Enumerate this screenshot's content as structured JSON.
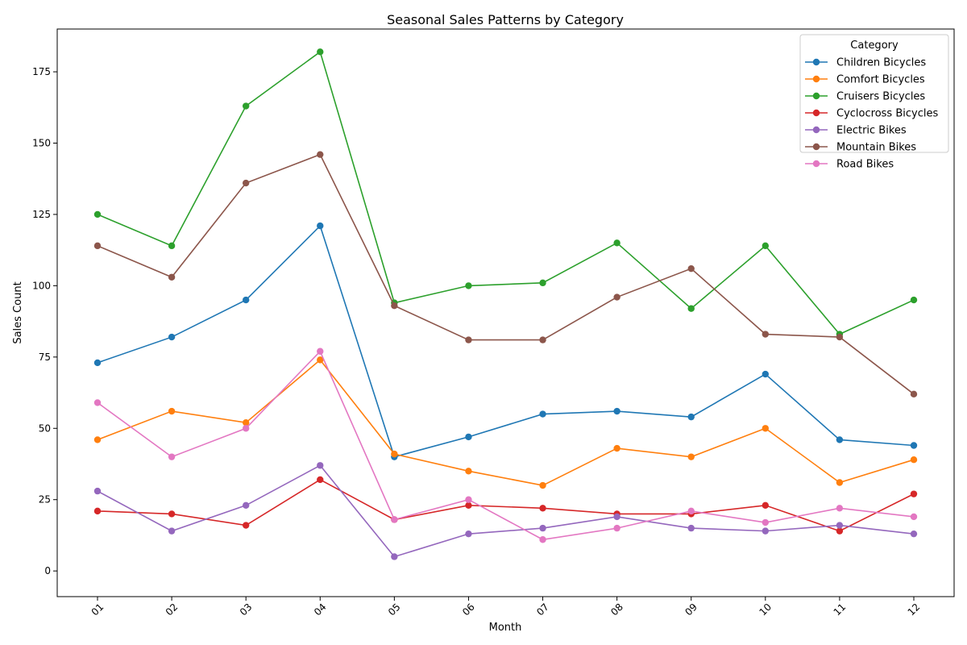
{
  "chart_data": {
    "type": "line",
    "title": "Seasonal Sales Patterns by Category",
    "xlabel": "Month",
    "ylabel": "Sales Count",
    "categories": [
      "01",
      "02",
      "03",
      "04",
      "05",
      "06",
      "07",
      "08",
      "09",
      "10",
      "11",
      "12"
    ],
    "ylim": [
      -9,
      190
    ],
    "yticks": [
      0,
      25,
      50,
      75,
      100,
      125,
      150,
      175
    ],
    "grid": false,
    "legend": {
      "title": "Category",
      "placement": "top-right"
    },
    "series": [
      {
        "name": "Children Bicycles",
        "color": "#1f77b4",
        "values": [
          73,
          82,
          95,
          121,
          40,
          47,
          55,
          56,
          54,
          69,
          46,
          44
        ]
      },
      {
        "name": "Comfort Bicycles",
        "color": "#ff7f0e",
        "values": [
          46,
          56,
          52,
          74,
          41,
          35,
          30,
          43,
          40,
          50,
          31,
          39
        ]
      },
      {
        "name": "Cruisers Bicycles",
        "color": "#2ca02c",
        "values": [
          125,
          114,
          163,
          182,
          94,
          100,
          101,
          115,
          92,
          114,
          83,
          95
        ]
      },
      {
        "name": "Cyclocross Bicycles",
        "color": "#d62728",
        "values": [
          21,
          20,
          16,
          32,
          18,
          23,
          22,
          20,
          20,
          23,
          14,
          27
        ]
      },
      {
        "name": "Electric Bikes",
        "color": "#9467bd",
        "values": [
          28,
          14,
          23,
          37,
          5,
          13,
          15,
          19,
          15,
          14,
          16,
          13
        ]
      },
      {
        "name": "Mountain Bikes",
        "color": "#8c564b",
        "values": [
          114,
          103,
          136,
          146,
          93,
          81,
          81,
          96,
          106,
          83,
          82,
          62
        ]
      },
      {
        "name": "Road Bikes",
        "color": "#e377c2",
        "values": [
          59,
          40,
          50,
          77,
          18,
          25,
          11,
          15,
          21,
          17,
          22,
          19
        ]
      }
    ]
  }
}
